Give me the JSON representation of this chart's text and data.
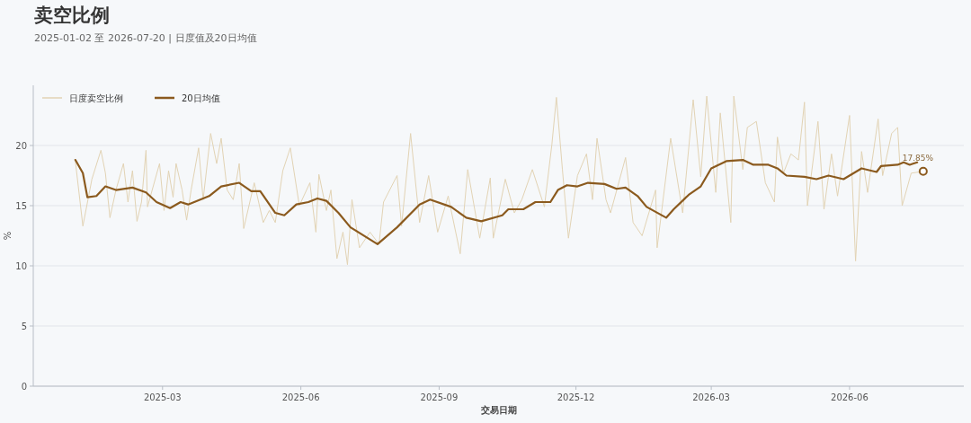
{
  "chart_data": {
    "type": "line",
    "title": "卖空比例",
    "subtitle": "2025-01-02 至 2026-07-20 | 日度值及20日均值",
    "xlabel": "交易日期",
    "ylabel": "%",
    "xlim": [
      "2024-12-05",
      "2026-08-16"
    ],
    "ylim": [
      0,
      25
    ],
    "yticks": [
      0,
      5,
      10,
      15,
      20
    ],
    "xticks": [
      {
        "value": "2025-03-01",
        "label": "2025-03"
      },
      {
        "value": "2025-06-01",
        "label": "2025-06"
      },
      {
        "value": "2025-09-01",
        "label": "2025-09"
      },
      {
        "value": "2025-12-01",
        "label": "2025-12"
      },
      {
        "value": "2026-03-01",
        "label": "2026-03"
      },
      {
        "value": "2026-06-01",
        "label": "2026-06"
      }
    ],
    "grid": "y",
    "legend": "top left",
    "line_style": "solid",
    "annotations": [
      {
        "text": "17.85%",
        "x": "2026-07-20",
        "y": 17.85
      }
    ],
    "series": [
      {
        "name": "日度卖空比例",
        "color": "#e2d3b4",
        "x": [
          "2025-01-02",
          "2025-01-07",
          "2025-01-13",
          "2025-01-19",
          "2025-01-22",
          "2025-01-25",
          "2025-01-29",
          "2025-02-03",
          "2025-02-06",
          "2025-02-09",
          "2025-02-12",
          "2025-02-15",
          "2025-02-18",
          "2025-02-19",
          "2025-02-27",
          "2025-03-02",
          "2025-03-05",
          "2025-03-08",
          "2025-03-10",
          "2025-03-14",
          "2025-03-17",
          "2025-03-20",
          "2025-03-25",
          "2025-03-28",
          "2025-04-02",
          "2025-04-06",
          "2025-04-09",
          "2025-04-13",
          "2025-04-17",
          "2025-04-21",
          "2025-04-24",
          "2025-05-01",
          "2025-05-07",
          "2025-05-11",
          "2025-05-15",
          "2025-05-20",
          "2025-05-25",
          "2025-05-31",
          "2025-06-07",
          "2025-06-11",
          "2025-06-13",
          "2025-06-18",
          "2025-06-21",
          "2025-06-25",
          "2025-06-29",
          "2025-07-02",
          "2025-07-05",
          "2025-07-10",
          "2025-07-17",
          "2025-07-23",
          "2025-07-26",
          "2025-08-04",
          "2025-08-07",
          "2025-08-13",
          "2025-08-19",
          "2025-08-25",
          "2025-08-31",
          "2025-09-07",
          "2025-09-15",
          "2025-09-20",
          "2025-09-28",
          "2025-10-05",
          "2025-10-07",
          "2025-10-15",
          "2025-10-21",
          "2025-10-26",
          "2025-11-02",
          "2025-11-10",
          "2025-11-15",
          "2025-11-18",
          "2025-11-22",
          "2025-11-26",
          "2025-12-02",
          "2025-12-08",
          "2025-12-12",
          "2025-12-15",
          "2025-12-21",
          "2025-12-24",
          "2026-01-03",
          "2026-01-08",
          "2026-01-14",
          "2026-01-23",
          "2026-01-24",
          "2026-02-02",
          "2026-02-10",
          "2026-02-17",
          "2026-02-22",
          "2026-02-26",
          "2026-03-04",
          "2026-03-07",
          "2026-03-14",
          "2026-03-16",
          "2026-03-22",
          "2026-03-25",
          "2026-03-31",
          "2026-04-06",
          "2026-04-12",
          "2026-04-14",
          "2026-04-18",
          "2026-04-23",
          "2026-04-28",
          "2026-05-02",
          "2026-05-04",
          "2026-05-11",
          "2026-05-15",
          "2026-05-20",
          "2026-05-24",
          "2026-06-01",
          "2026-06-05",
          "2026-06-09",
          "2026-06-13",
          "2026-06-20",
          "2026-06-23",
          "2026-06-29",
          "2026-07-03",
          "2026-07-06",
          "2026-07-12",
          "2026-07-20"
        ],
        "values": [
          18.7,
          13.3,
          17.2,
          19.6,
          17.7,
          14.0,
          16.3,
          18.5,
          15.3,
          17.9,
          13.7,
          15.3,
          19.6,
          14.9,
          18.5,
          14.6,
          17.9,
          15.7,
          18.5,
          16.3,
          13.8,
          16.3,
          19.8,
          15.5,
          21.0,
          18.5,
          20.6,
          16.3,
          15.5,
          18.5,
          13.1,
          16.9,
          13.6,
          14.6,
          13.6,
          17.9,
          19.8,
          15.0,
          16.9,
          12.8,
          17.6,
          14.6,
          16.3,
          10.6,
          12.8,
          10.1,
          15.5,
          11.5,
          12.8,
          11.8,
          15.3,
          17.5,
          13.3,
          21.0,
          13.6,
          17.5,
          12.8,
          15.8,
          11.0,
          18.0,
          12.3,
          17.3,
          12.3,
          17.2,
          14.4,
          15.5,
          18.0,
          14.9,
          20.1,
          24.0,
          18.0,
          12.3,
          17.5,
          19.3,
          15.5,
          20.6,
          15.5,
          14.4,
          19.0,
          13.6,
          12.5,
          16.3,
          11.5,
          20.6,
          14.4,
          23.8,
          17.4,
          24.1,
          16.1,
          22.7,
          13.6,
          24.1,
          18.0,
          21.5,
          22.0,
          16.9,
          15.3,
          20.7,
          17.7,
          19.3,
          18.8,
          23.6,
          15.0,
          22.0,
          14.7,
          19.3,
          15.8,
          22.5,
          10.4,
          19.5,
          16.1,
          22.2,
          17.5,
          21.0,
          21.5,
          15.0,
          17.7,
          17.85
        ]
      },
      {
        "name": "20日均值",
        "color": "#8b5a1e",
        "x": [
          "2025-01-02",
          "2025-01-07",
          "2025-01-10",
          "2025-01-16",
          "2025-01-22",
          "2025-01-29",
          "2025-02-09",
          "2025-02-18",
          "2025-02-25",
          "2025-03-06",
          "2025-03-13",
          "2025-03-18",
          "2025-04-01",
          "2025-04-09",
          "2025-04-21",
          "2025-04-29",
          "2025-05-05",
          "2025-05-15",
          "2025-05-21",
          "2025-05-29",
          "2025-06-06",
          "2025-06-12",
          "2025-06-18",
          "2025-06-26",
          "2025-07-04",
          "2025-07-22",
          "2025-08-04",
          "2025-08-19",
          "2025-08-26",
          "2025-09-09",
          "2025-09-19",
          "2025-09-29",
          "2025-10-13",
          "2025-10-17",
          "2025-10-27",
          "2025-11-04",
          "2025-11-14",
          "2025-11-19",
          "2025-11-25",
          "2025-12-02",
          "2025-12-09",
          "2025-12-20",
          "2025-12-28",
          "2026-01-03",
          "2026-01-11",
          "2026-01-17",
          "2026-01-30",
          "2026-02-04",
          "2026-02-14",
          "2026-02-22",
          "2026-03-01",
          "2026-03-11",
          "2026-03-22",
          "2026-03-29",
          "2026-04-08",
          "2026-04-14",
          "2026-04-20",
          "2026-05-02",
          "2026-05-10",
          "2026-05-18",
          "2026-05-28",
          "2026-06-05",
          "2026-06-09",
          "2026-06-19",
          "2026-06-22",
          "2026-07-03",
          "2026-07-07",
          "2026-07-11",
          "2026-07-16"
        ],
        "values": [
          18.8,
          17.7,
          15.7,
          15.8,
          16.6,
          16.3,
          16.5,
          16.1,
          15.3,
          14.8,
          15.3,
          15.1,
          15.8,
          16.6,
          16.9,
          16.2,
          16.2,
          14.4,
          14.2,
          15.1,
          15.3,
          15.6,
          15.4,
          14.4,
          13.2,
          11.8,
          13.2,
          15.1,
          15.5,
          14.9,
          14.0,
          13.7,
          14.2,
          14.7,
          14.7,
          15.3,
          15.3,
          16.3,
          16.7,
          16.6,
          16.9,
          16.8,
          16.4,
          16.5,
          15.8,
          14.9,
          14.0,
          14.7,
          15.9,
          16.6,
          18.1,
          18.7,
          18.8,
          18.4,
          18.4,
          18.1,
          17.5,
          17.4,
          17.2,
          17.5,
          17.2,
          17.8,
          18.1,
          17.8,
          18.3,
          18.4,
          18.6,
          18.4,
          18.6
        ]
      },
      {
        "type": "scatter",
        "marker": "circle",
        "color": "#8b5a1e",
        "x": [
          "2026-07-20"
        ],
        "values": [
          17.85
        ]
      }
    ]
  }
}
